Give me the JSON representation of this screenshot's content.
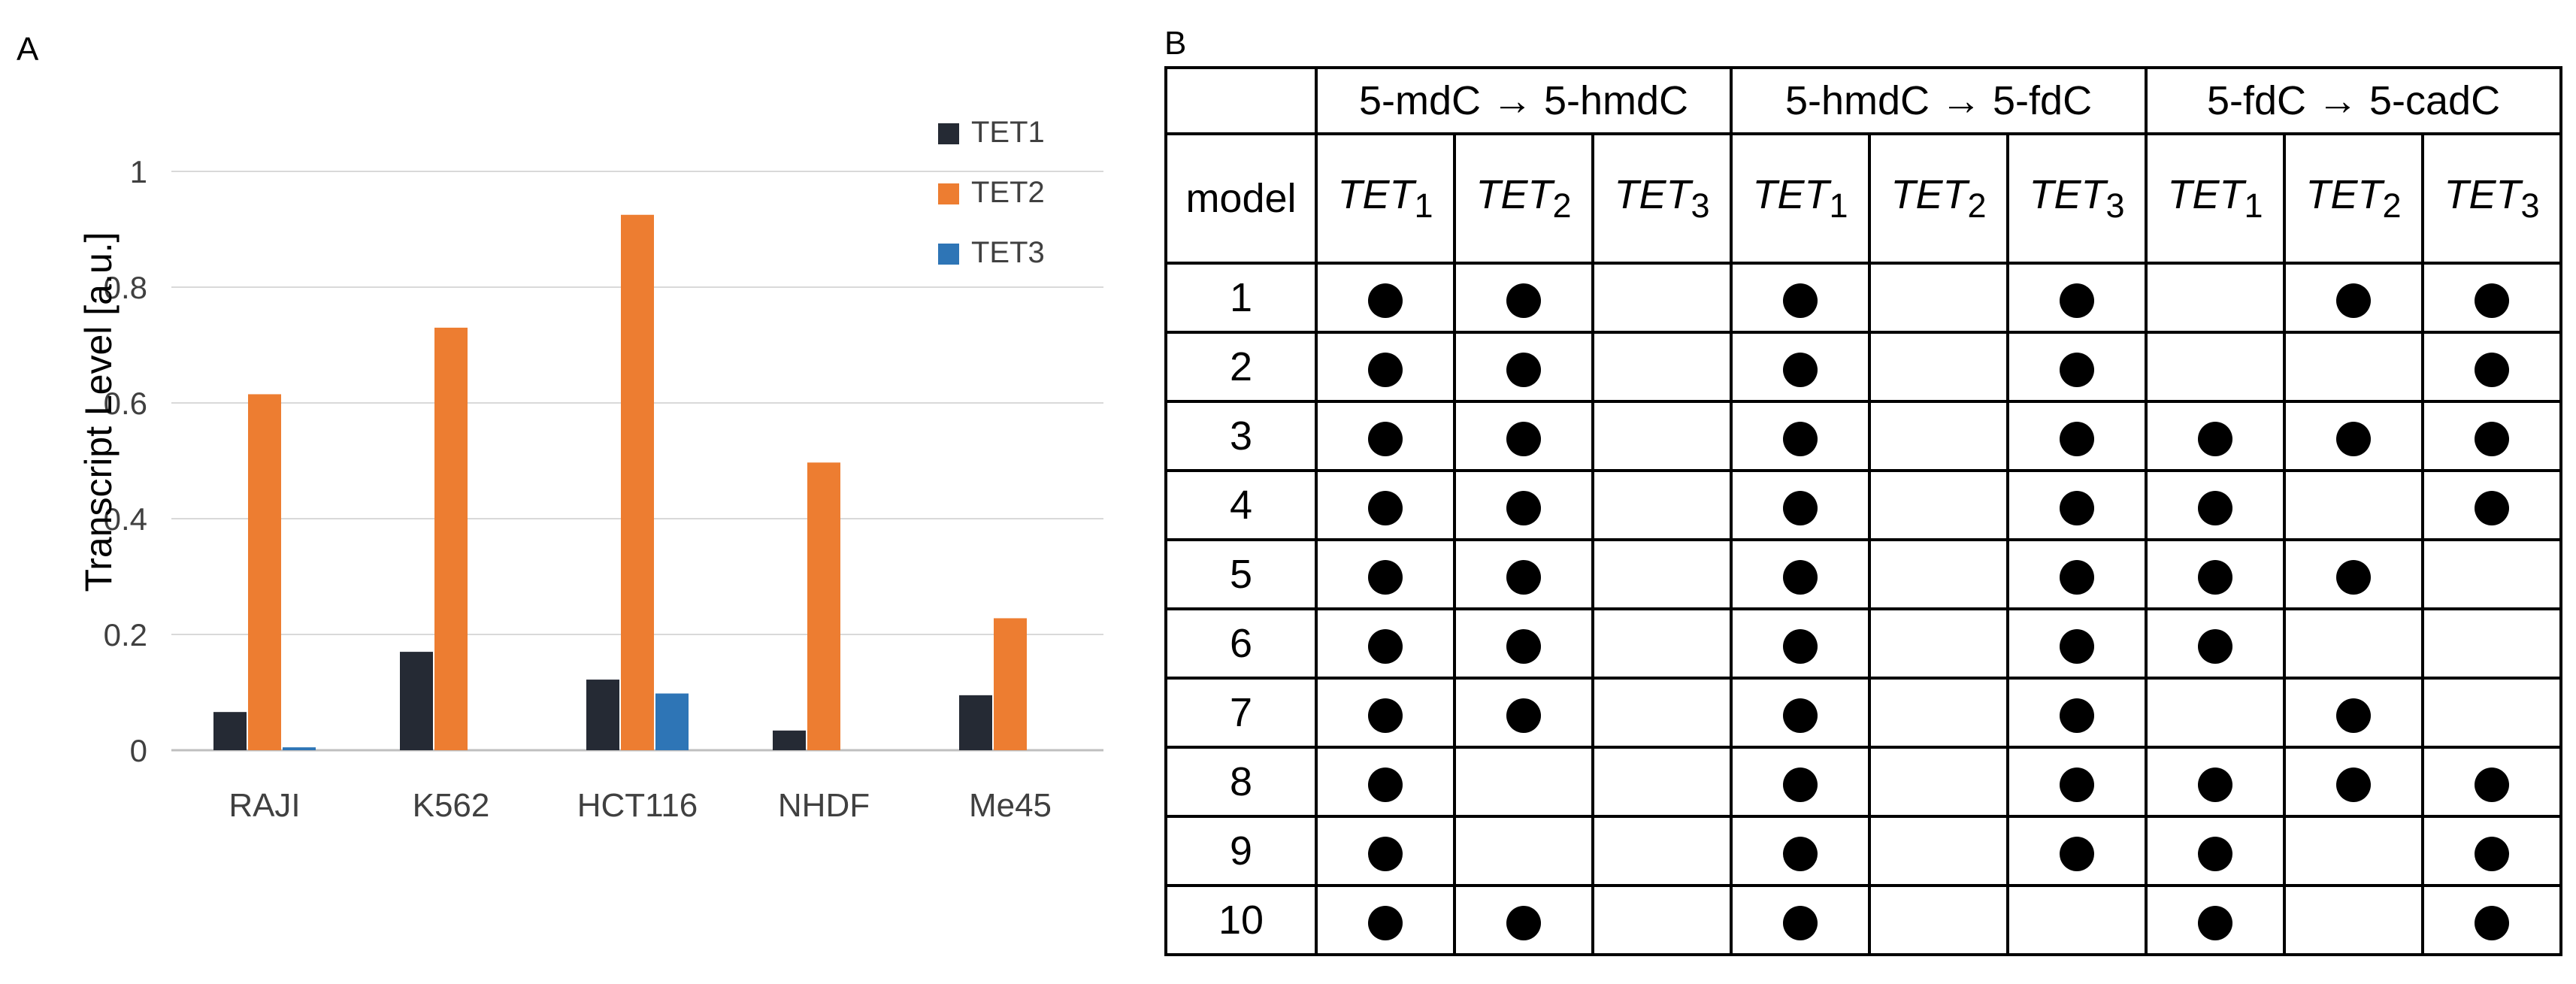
{
  "panel_a_label": "A",
  "panel_b_label": "B",
  "chart_data": {
    "type": "bar",
    "title": "",
    "xlabel": "",
    "ylabel": "Transcript Level [a.u.]",
    "ylim": [
      0,
      1
    ],
    "yticks": [
      "0",
      "0.2",
      "0.4",
      "0.6",
      "0.8",
      "1"
    ],
    "ytick_values": [
      0,
      0.2,
      0.4,
      0.6,
      0.8,
      1
    ],
    "grid": true,
    "legend_position": "top-right",
    "categories": [
      "RAJI",
      "K562",
      "HCT116",
      "NHDF",
      "Me45"
    ],
    "series": [
      {
        "name": "TET1",
        "color": "#252a34",
        "values": [
          0.066,
          0.17,
          0.122,
          0.034,
          0.095
        ]
      },
      {
        "name": "TET2",
        "color": "#ed7d31",
        "values": [
          0.615,
          0.73,
          0.925,
          0.497,
          0.228
        ]
      },
      {
        "name": "TET3",
        "color": "#2e75b6",
        "values": [
          0.005,
          0,
          0.098,
          0,
          0
        ]
      }
    ]
  },
  "table": {
    "groups": [
      "5-mdC → 5-hmdC",
      "5-hmdC → 5-fdC",
      "5-fdC → 5-cadC"
    ],
    "model_header": "model",
    "enzyme_base": "TET",
    "enzyme_subscripts": [
      "1",
      "2",
      "3",
      "1",
      "2",
      "3",
      "1",
      "2",
      "3"
    ],
    "rows": [
      {
        "model": "1",
        "marks": [
          1,
          1,
          0,
          1,
          0,
          1,
          0,
          1,
          1
        ]
      },
      {
        "model": "2",
        "marks": [
          1,
          1,
          0,
          1,
          0,
          1,
          0,
          0,
          1
        ]
      },
      {
        "model": "3",
        "marks": [
          1,
          1,
          0,
          1,
          0,
          1,
          1,
          1,
          1
        ]
      },
      {
        "model": "4",
        "marks": [
          1,
          1,
          0,
          1,
          0,
          1,
          1,
          0,
          1
        ]
      },
      {
        "model": "5",
        "marks": [
          1,
          1,
          0,
          1,
          0,
          1,
          1,
          1,
          0
        ]
      },
      {
        "model": "6",
        "marks": [
          1,
          1,
          0,
          1,
          0,
          1,
          1,
          0,
          0
        ]
      },
      {
        "model": "7",
        "marks": [
          1,
          1,
          0,
          1,
          0,
          1,
          0,
          1,
          0
        ]
      },
      {
        "model": "8",
        "marks": [
          1,
          0,
          0,
          1,
          0,
          1,
          1,
          1,
          1
        ]
      },
      {
        "model": "9",
        "marks": [
          1,
          0,
          0,
          1,
          0,
          1,
          1,
          0,
          1
        ]
      },
      {
        "model": "10",
        "marks": [
          1,
          1,
          0,
          1,
          0,
          0,
          1,
          0,
          1
        ]
      }
    ]
  }
}
